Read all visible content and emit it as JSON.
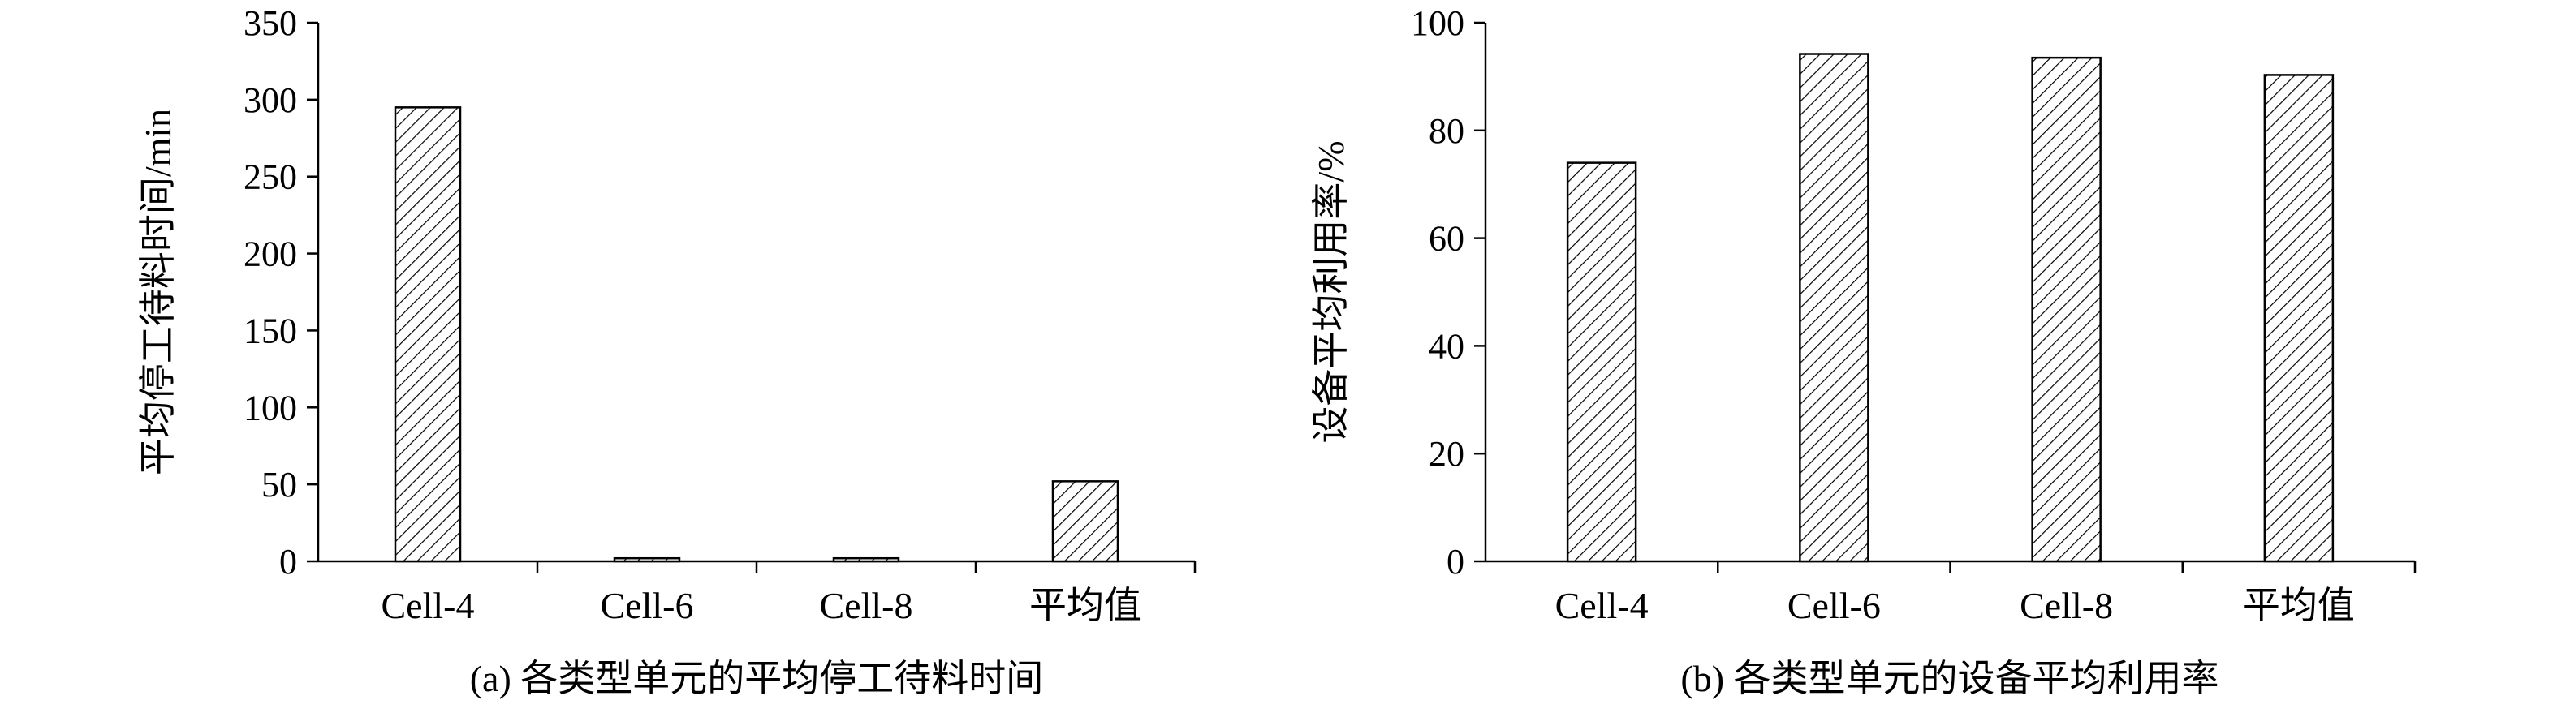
{
  "chart_data": [
    {
      "type": "bar",
      "caption": "(a) 各类型单元的平均停工待料时间",
      "ylabel": "平均停工待料时间/min",
      "xlabel": "",
      "categories": [
        "Cell-4",
        "Cell-6",
        "Cell-8",
        "平均值"
      ],
      "values": [
        295,
        2,
        2,
        52
      ],
      "ylim": [
        0,
        350
      ],
      "yticks": [
        "0",
        "50",
        "100",
        "150",
        "200",
        "250",
        "300",
        "350"
      ],
      "grid": false,
      "bar_pattern": "diagonal-hatch"
    },
    {
      "type": "bar",
      "caption": "(b) 各类型单元的设备平均利用率",
      "ylabel": "设备平均利用率/%",
      "xlabel": "",
      "categories": [
        "Cell-4",
        "Cell-6",
        "Cell-8",
        "平均值"
      ],
      "values": [
        74,
        94.2,
        93.5,
        90.3
      ],
      "ylim": [
        0,
        100
      ],
      "yticks": [
        "0",
        "20",
        "40",
        "60",
        "80",
        "100"
      ],
      "grid": false,
      "bar_pattern": "diagonal-hatch"
    }
  ]
}
